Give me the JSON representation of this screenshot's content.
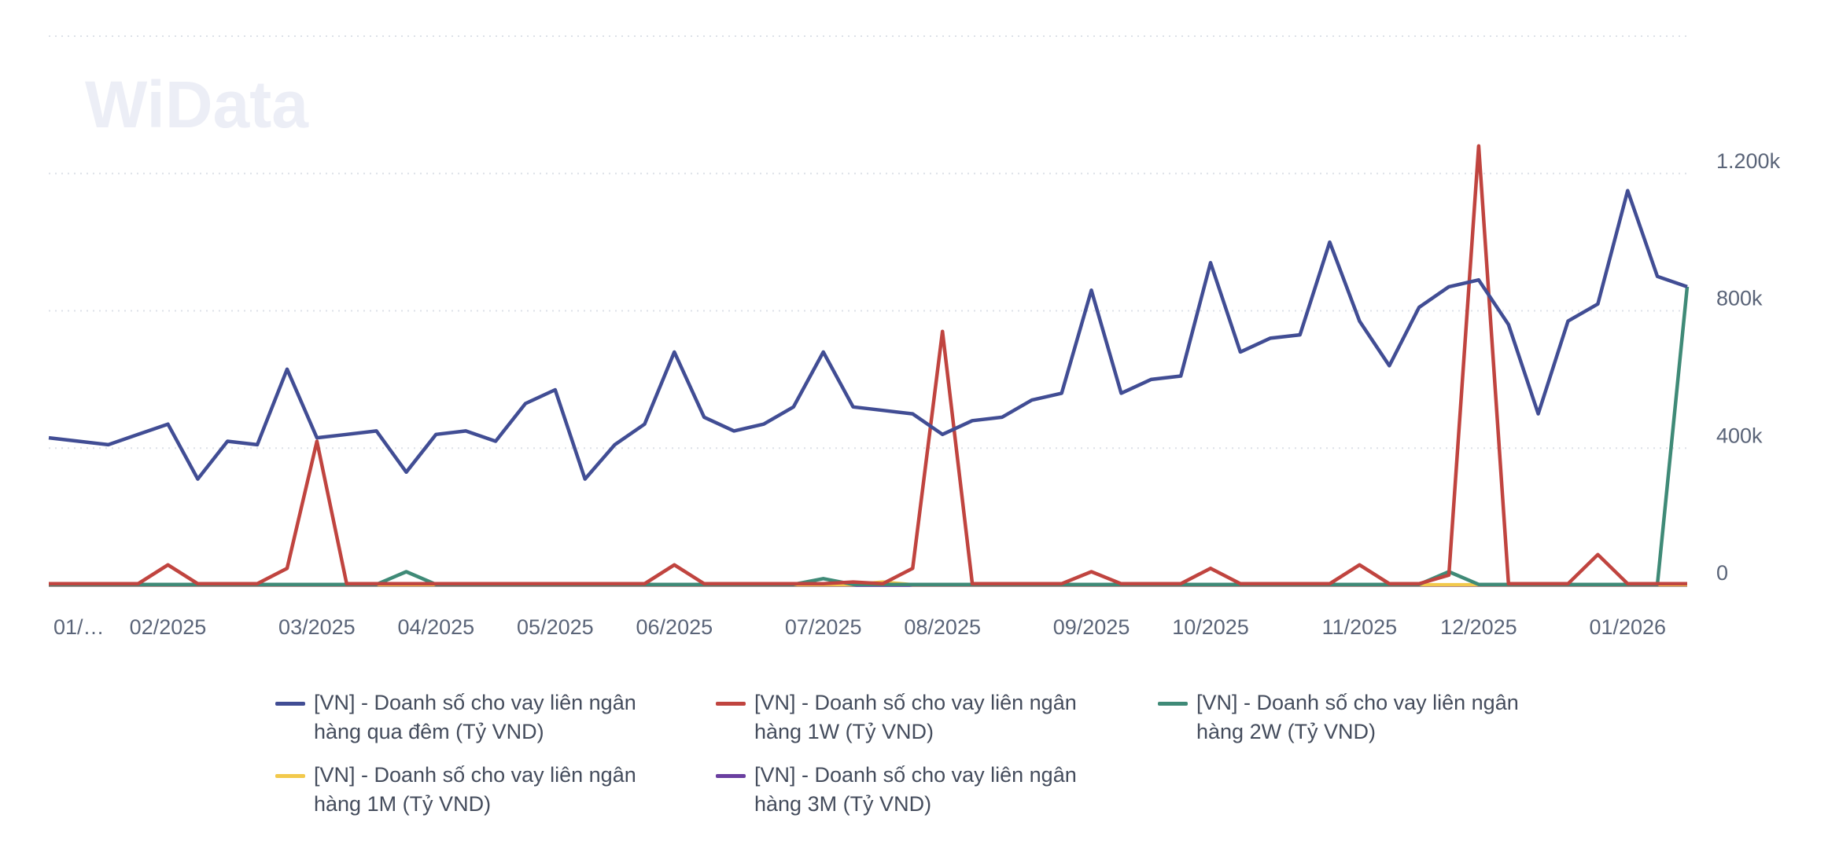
{
  "watermark": "WiData",
  "chart_data": {
    "type": "line",
    "categories": [
      "01/…",
      null,
      null,
      null,
      "02/2025",
      null,
      null,
      null,
      null,
      "03/2025",
      null,
      null,
      null,
      "04/2025",
      null,
      null,
      null,
      "05/2025",
      null,
      null,
      null,
      "06/2025",
      null,
      null,
      null,
      null,
      "07/2025",
      null,
      null,
      null,
      "08/2025",
      null,
      null,
      null,
      null,
      "09/2025",
      null,
      null,
      null,
      "10/2025",
      null,
      null,
      null,
      null,
      "11/2025",
      null,
      null,
      null,
      "12/2025",
      null,
      null,
      null,
      null,
      "01/2026",
      null,
      null
    ],
    "series": [
      {
        "name": "[VN] - Doanh số cho vay liên ngân hàng qua đêm (Tỷ VND)",
        "color": "#414d94",
        "values": [
          430000,
          420000,
          410000,
          440000,
          470000,
          310000,
          420000,
          410000,
          630000,
          430000,
          440000,
          450000,
          330000,
          440000,
          450000,
          420000,
          530000,
          570000,
          310000,
          410000,
          470000,
          680000,
          490000,
          450000,
          470000,
          520000,
          680000,
          520000,
          510000,
          500000,
          440000,
          480000,
          490000,
          540000,
          560000,
          860000,
          560000,
          600000,
          610000,
          940000,
          680000,
          720000,
          730000,
          1000000,
          770000,
          640000,
          810000,
          870000,
          890000,
          760000,
          500000,
          770000,
          820000,
          1150000,
          900000,
          870000
        ]
      },
      {
        "name": "[VN] - Doanh số cho vay liên ngân hàng 1W (Tỷ VND)",
        "color": "#c0443f",
        "values": [
          5000,
          5000,
          5000,
          5000,
          60000,
          5000,
          5000,
          5000,
          50000,
          420000,
          5000,
          5000,
          5000,
          5000,
          5000,
          5000,
          5000,
          5000,
          5000,
          5000,
          5000,
          60000,
          5000,
          5000,
          5000,
          5000,
          5000,
          10000,
          5000,
          50000,
          740000,
          5000,
          5000,
          5000,
          5000,
          40000,
          5000,
          5000,
          5000,
          50000,
          5000,
          5000,
          5000,
          5000,
          60000,
          5000,
          5000,
          30000,
          1280000,
          5000,
          5000,
          5000,
          90000,
          5000,
          5000,
          5000
        ]
      },
      {
        "name": "[VN] - Doanh số cho vay liên ngân hàng 2W (Tỷ VND)",
        "color": "#3f8a77",
        "values": [
          3000,
          3000,
          3000,
          3000,
          3000,
          3000,
          3000,
          3000,
          3000,
          3000,
          3000,
          3000,
          40000,
          3000,
          3000,
          3000,
          3000,
          3000,
          3000,
          3000,
          3000,
          3000,
          3000,
          3000,
          3000,
          3000,
          20000,
          3000,
          3000,
          3000,
          3000,
          3000,
          3000,
          3000,
          3000,
          3000,
          3000,
          3000,
          3000,
          3000,
          3000,
          3000,
          3000,
          3000,
          3000,
          3000,
          3000,
          40000,
          3000,
          3000,
          3000,
          3000,
          3000,
          3000,
          3000,
          870000
        ]
      },
      {
        "name": "[VN] - Doanh số cho vay liên ngân hàng 1M (Tỷ VND)",
        "color": "#f2c94c",
        "values": [
          2000,
          2000,
          2000,
          2000,
          2000,
          2000,
          2000,
          2000,
          2000,
          2000,
          2000,
          2000,
          2000,
          2000,
          2000,
          2000,
          2000,
          2000,
          2000,
          2000,
          2000,
          2000,
          2000,
          2000,
          2000,
          2000,
          2000,
          2000,
          10000,
          2000,
          2000,
          2000,
          2000,
          2000,
          2000,
          2000,
          2000,
          2000,
          2000,
          2000,
          2000,
          2000,
          2000,
          2000,
          2000,
          2000,
          2000,
          2000,
          2000,
          2000,
          2000,
          2000,
          2000,
          2000,
          2000,
          2000
        ]
      },
      {
        "name": "[VN] - Doanh số cho vay liên ngân hàng 3M (Tỷ VND)",
        "color": "#6a3fa0",
        "values": [
          1000,
          1000,
          1000,
          1000,
          1000,
          1000,
          1000,
          1000,
          1000,
          1000,
          1000,
          1000,
          1000,
          1000,
          1000,
          1000,
          1000,
          1000,
          1000,
          1000,
          1000,
          1000,
          1000,
          1000,
          1000,
          1000,
          1000,
          1000,
          1000,
          1000,
          1000,
          1000,
          1000,
          1000,
          1000,
          1000,
          1000,
          1000,
          1000,
          1000,
          1000,
          1000,
          1000,
          1000,
          1000,
          1000,
          1000,
          1000,
          1000,
          1000,
          1000,
          1000,
          1000,
          1000,
          1000,
          1000
        ]
      }
    ],
    "ylim": [
      0,
      1600000
    ],
    "yticks": [
      0,
      {
        "value": 400000,
        "label": "400k"
      },
      {
        "value": 800000,
        "label": "800k"
      },
      {
        "value": 1200000,
        "label": "1.200k"
      }
    ],
    "grid": true
  }
}
